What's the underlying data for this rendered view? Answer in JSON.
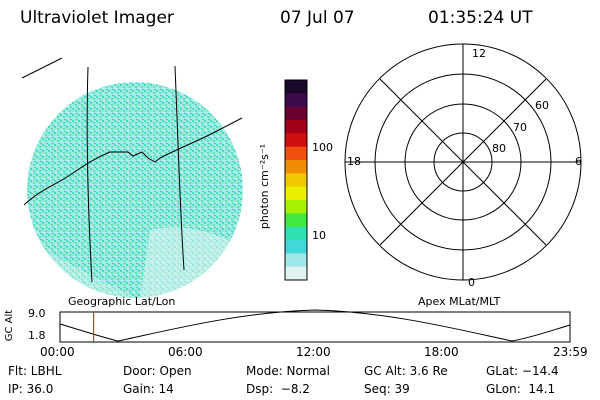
{
  "header": {
    "instrument": "Ultraviolet Imager",
    "date": "07 Jul 07",
    "time": "01:35:24 UT"
  },
  "colorbar": {
    "unit_label": "photon cm⁻²s⁻¹",
    "ticks": [
      "100",
      "10"
    ],
    "colors": [
      "#1a0a2a",
      "#3a0a4a",
      "#6a0030",
      "#a00018",
      "#d01010",
      "#f05010",
      "#f08a00",
      "#f0c800",
      "#e8f000",
      "#a8f000",
      "#40e840",
      "#30e0b0",
      "#40d8d8",
      "#a0e8e8",
      "#dff3f3"
    ]
  },
  "polar": {
    "top_label": "12",
    "left_label": "18",
    "right_label": "6",
    "bottom_label": "0",
    "ring_labels": [
      "60",
      "70",
      "80"
    ]
  },
  "labels": {
    "geo": "Geographic Lat/Lon",
    "apex": "Apex MLat/MLT",
    "gc_alt_axis": "GC Alt",
    "y_top": "9.0",
    "y_bottom": "1.8"
  },
  "timeline": {
    "ticks": [
      "00:00",
      "06:00",
      "12:00",
      "18:00",
      "23:59"
    ],
    "marker_time_fraction": 0.066
  },
  "info": {
    "row1": [
      "Flt: LBHL",
      "Door: Open",
      "Mode: Normal",
      "GC Alt: 3.6 Re",
      "GLat: −14.4"
    ],
    "row2": [
      "IP: 36.0",
      "Gain: 14",
      "Dsp:  −8.2",
      "Seq: 39",
      "GLon:  14.1"
    ]
  },
  "colors": {
    "marker": "#d01010",
    "image_base": "#a0e8e8",
    "image_speckle": "#40e0b0"
  }
}
